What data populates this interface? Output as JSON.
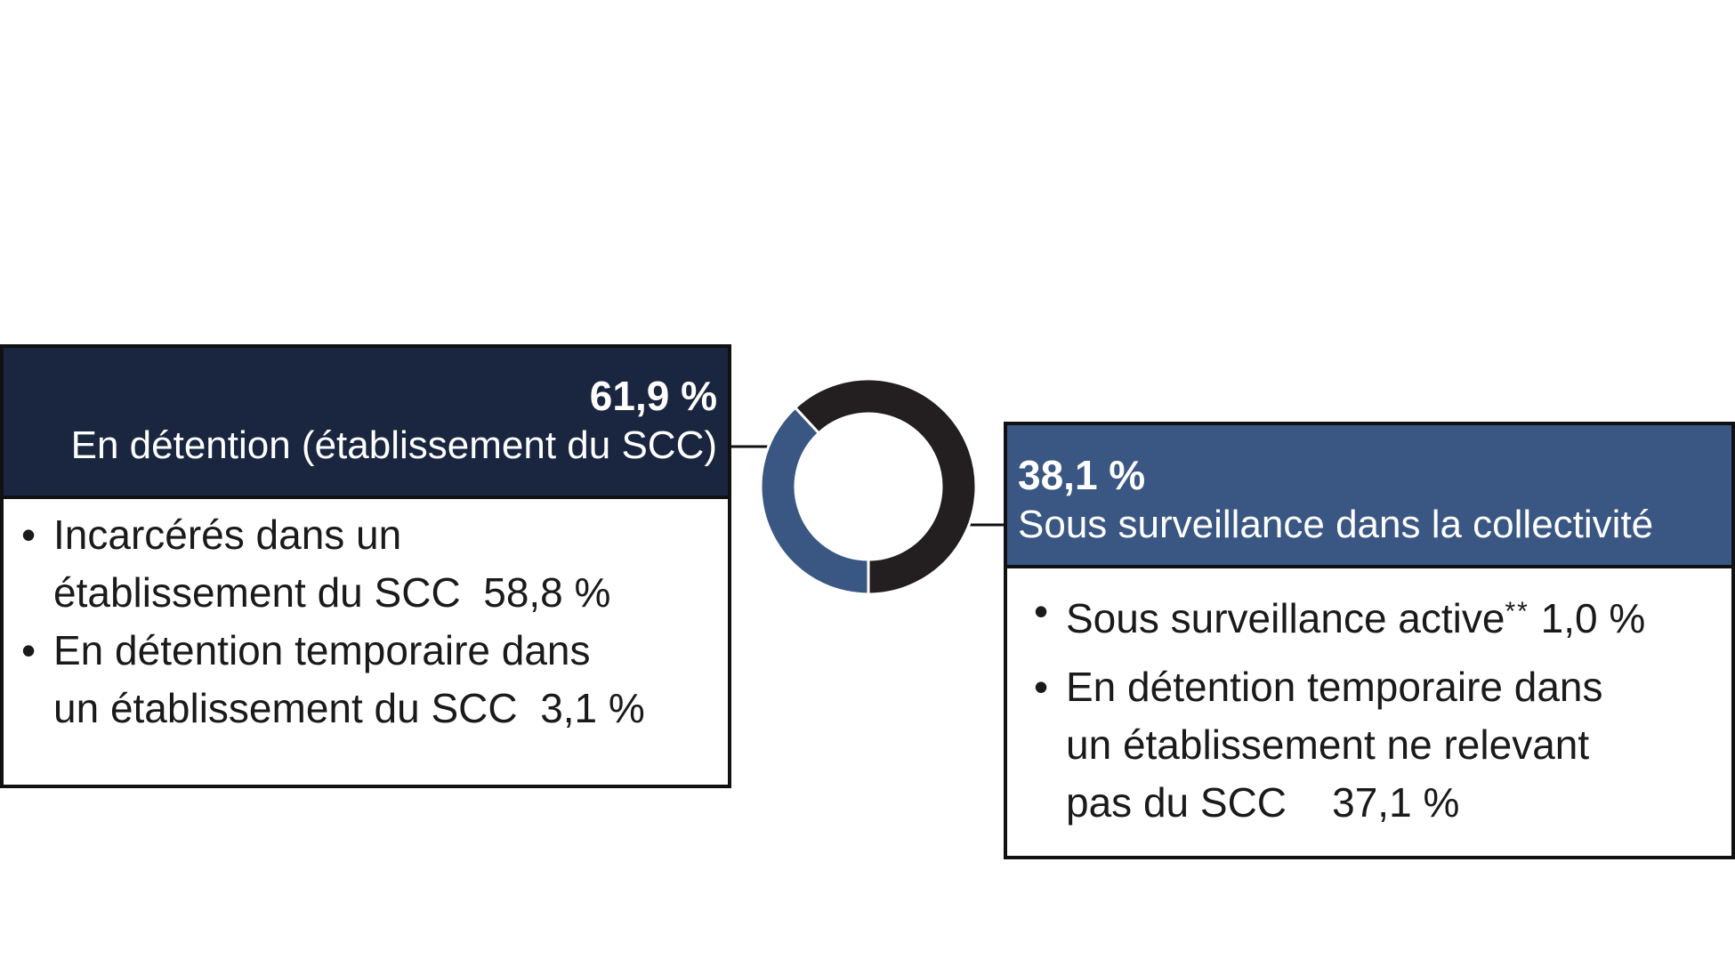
{
  "chart_data": {
    "type": "pie",
    "variant": "donut",
    "title": "",
    "slices": [
      {
        "label": "En détention (établissement du SCC)",
        "value": 61.9,
        "value_text": "61,9 %",
        "color": "#231f20"
      },
      {
        "label": "Sous surveillance dans la collectivité",
        "value": 38.1,
        "value_text": "38,1 %",
        "color": "#3a5783"
      }
    ]
  },
  "cards": {
    "left": {
      "pct": "61,9 %",
      "label": "En détention (établissement du SCC)",
      "header_color": "#1a2640",
      "items": [
        {
          "line1": "Incarcérés dans un",
          "line2": "établissement du SCC",
          "value": "58,8 %"
        },
        {
          "line1": "En détention temporaire dans",
          "line2": "un établissement du SCC",
          "value": "3,1 %"
        }
      ]
    },
    "right": {
      "pct": "38,1 %",
      "label": "Sous surveillance dans la collectivité",
      "header_color": "#3a5783",
      "items": [
        {
          "text": "Sous surveillance active",
          "sup": "**",
          "value": "1,0 %"
        },
        {
          "line1": "En détention temporaire dans",
          "line2": "un établissement ne relevant",
          "line3": "pas du SCC",
          "value": "37,1 %"
        }
      ]
    }
  }
}
